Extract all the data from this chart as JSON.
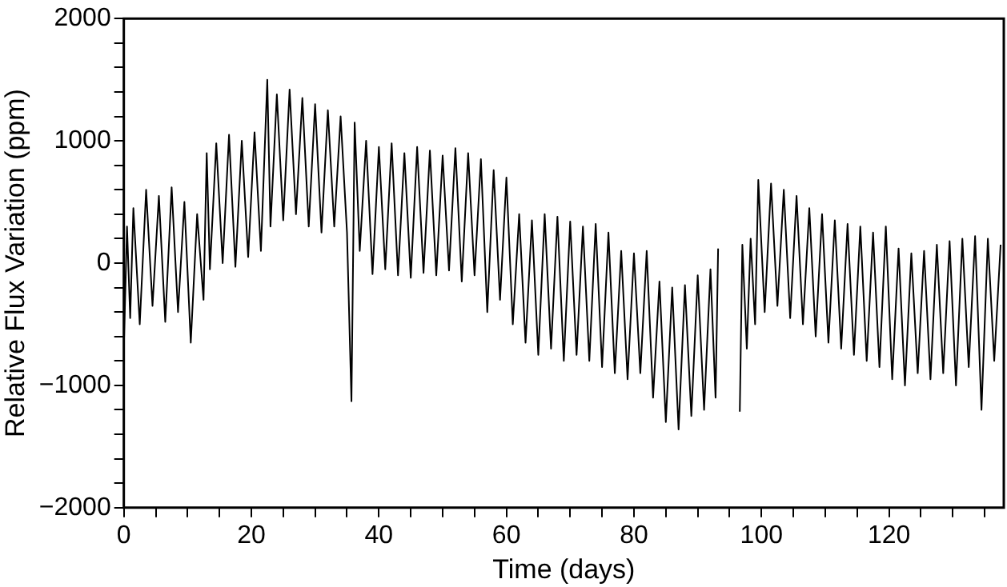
{
  "chart_data": {
    "type": "line",
    "xlabel": "Time (days)",
    "ylabel": "Relative Flux Variation (ppm)",
    "x": [
      0,
      0.5,
      1,
      1.5,
      2.5,
      3.5,
      4.5,
      5.5,
      6.5,
      7.5,
      8.5,
      9.5,
      10.5,
      11.5,
      12.5,
      13,
      13.5,
      14.5,
      15.5,
      16.5,
      17.5,
      18.5,
      19.5,
      20.5,
      21.5,
      22.5,
      23,
      24,
      25,
      26,
      27,
      28,
      29,
      30,
      31,
      32,
      33,
      34,
      35,
      35.7,
      36.2,
      37,
      38,
      39,
      40,
      41,
      42,
      43,
      44,
      45,
      46,
      47,
      48,
      49,
      50,
      51,
      52,
      53,
      54,
      55,
      56,
      57,
      58,
      59,
      60,
      61,
      62,
      63,
      64,
      65,
      66,
      67,
      68,
      69,
      70,
      71,
      72,
      73,
      74,
      75,
      76,
      77,
      78,
      79,
      80,
      81,
      82,
      83,
      84,
      85,
      86,
      87,
      88,
      89,
      90,
      91,
      92,
      92.8,
      93.2,
      95,
      96.6,
      97,
      97.7,
      98.3,
      99,
      99.5,
      100.5,
      101.5,
      102.5,
      103.5,
      104.5,
      105.5,
      106.5,
      107.5,
      108.5,
      109.5,
      110.5,
      111.5,
      112.5,
      113.5,
      114.5,
      115.5,
      116.5,
      117.5,
      118.5,
      119.5,
      120.5,
      121.5,
      122.5,
      123.5,
      124.5,
      125.5,
      126.5,
      127.5,
      128.5,
      129.5,
      130.5,
      131.5,
      132.5,
      133.5,
      134.5,
      135.5,
      136.5,
      137.5
    ],
    "series": [
      {
        "color": "#000000",
        "values": [
          -700,
          300,
          -450,
          450,
          -500,
          600,
          -350,
          550,
          -480,
          620,
          -400,
          500,
          -650,
          400,
          -300,
          900,
          -50,
          980,
          0,
          1050,
          -30,
          1000,
          50,
          1070,
          100,
          1500,
          300,
          1380,
          350,
          1420,
          400,
          1350,
          300,
          1300,
          250,
          1250,
          300,
          1200,
          250,
          -1130,
          1150,
          100,
          1000,
          -90,
          950,
          -50,
          980,
          -100,
          900,
          -120,
          950,
          -80,
          920,
          -100,
          880,
          -60,
          940,
          -150,
          900,
          -100,
          850,
          -400,
          760,
          -300,
          700,
          -500,
          400,
          -650,
          350,
          -750,
          400,
          -700,
          380,
          -800,
          340,
          -750,
          300,
          -800,
          320,
          -850,
          250,
          -900,
          100,
          -950,
          80,
          -900,
          100,
          -1100,
          -150,
          -1300,
          -200,
          -1360,
          -180,
          -1250,
          -100,
          -1200,
          -50,
          -1100,
          120,
          null,
          -1215,
          150,
          -700,
          200,
          -500,
          680,
          -400,
          650,
          -350,
          600,
          -450,
          550,
          -500,
          450,
          -600,
          400,
          -650,
          350,
          -700,
          320,
          -750,
          300,
          -800,
          250,
          -850,
          300,
          -950,
          120,
          -1000,
          80,
          -900,
          100,
          -950,
          150,
          -900,
          180,
          -1000,
          200,
          -850,
          220,
          -1200,
          200,
          -800,
          150
        ]
      }
    ],
    "xlim": [
      0,
      138
    ],
    "ylim": [
      -2000,
      2000
    ],
    "xticks": [
      0,
      {
        "value": 5,
        "label": null
      },
      {
        "value": 10,
        "label": null
      },
      {
        "value": 15,
        "label": null
      },
      20,
      {
        "value": 25,
        "label": null
      },
      {
        "value": 30,
        "label": null
      },
      {
        "value": 35,
        "label": null
      },
      40,
      {
        "value": 45,
        "label": null
      },
      {
        "value": 50,
        "label": null
      },
      {
        "value": 55,
        "label": null
      },
      60,
      {
        "value": 65,
        "label": null
      },
      {
        "value": 70,
        "label": null
      },
      {
        "value": 75,
        "label": null
      },
      80,
      {
        "value": 85,
        "label": null
      },
      {
        "value": 90,
        "label": null
      },
      {
        "value": 95,
        "label": null
      },
      100,
      {
        "value": 105,
        "label": null
      },
      {
        "value": 110,
        "label": null
      },
      {
        "value": 115,
        "label": null
      },
      120,
      {
        "value": 125,
        "label": null
      },
      {
        "value": 130,
        "label": null
      },
      {
        "value": 135,
        "label": null
      }
    ],
    "yticks": [
      -2000,
      {
        "value": -1800,
        "label": null
      },
      {
        "value": -1600,
        "label": null
      },
      {
        "value": -1400,
        "label": null
      },
      {
        "value": -1200,
        "label": null
      },
      -1000,
      {
        "value": -800,
        "label": null
      },
      {
        "value": -600,
        "label": null
      },
      {
        "value": -400,
        "label": null
      },
      {
        "value": -200,
        "label": null
      },
      0,
      {
        "value": 200,
        "label": null
      },
      {
        "value": 400,
        "label": null
      },
      {
        "value": 600,
        "label": null
      },
      {
        "value": 800,
        "label": null
      },
      1000,
      {
        "value": 1200,
        "label": null
      },
      {
        "value": 1400,
        "label": null
      },
      {
        "value": 1600,
        "label": null
      },
      {
        "value": 1800,
        "label": null
      },
      2000
    ],
    "grid": false,
    "legend": false,
    "marker": "none",
    "line_style": "solid"
  }
}
